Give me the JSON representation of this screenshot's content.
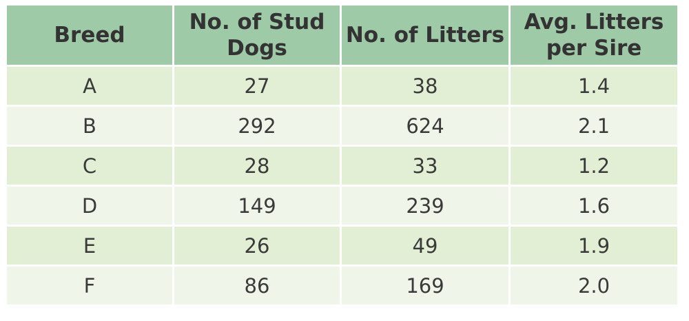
{
  "chart_data": {
    "type": "table",
    "columns": [
      "Breed",
      "No. of Stud Dogs",
      "No. of Litters",
      "Avg. Litters per Sire"
    ],
    "rows": [
      [
        "A",
        "27",
        "38",
        "1.4"
      ],
      [
        "B",
        "292",
        "624",
        "2.1"
      ],
      [
        "C",
        "28",
        "33",
        "1.2"
      ],
      [
        "D",
        "149",
        "239",
        "1.6"
      ],
      [
        "E",
        "26",
        "49",
        "1.9"
      ],
      [
        "F",
        "86",
        "169",
        "2.0"
      ]
    ]
  },
  "colors": {
    "header_bg": "#9fcaa8",
    "row_odd_bg": "#e3efd4",
    "row_even_bg": "#eff5e8"
  }
}
